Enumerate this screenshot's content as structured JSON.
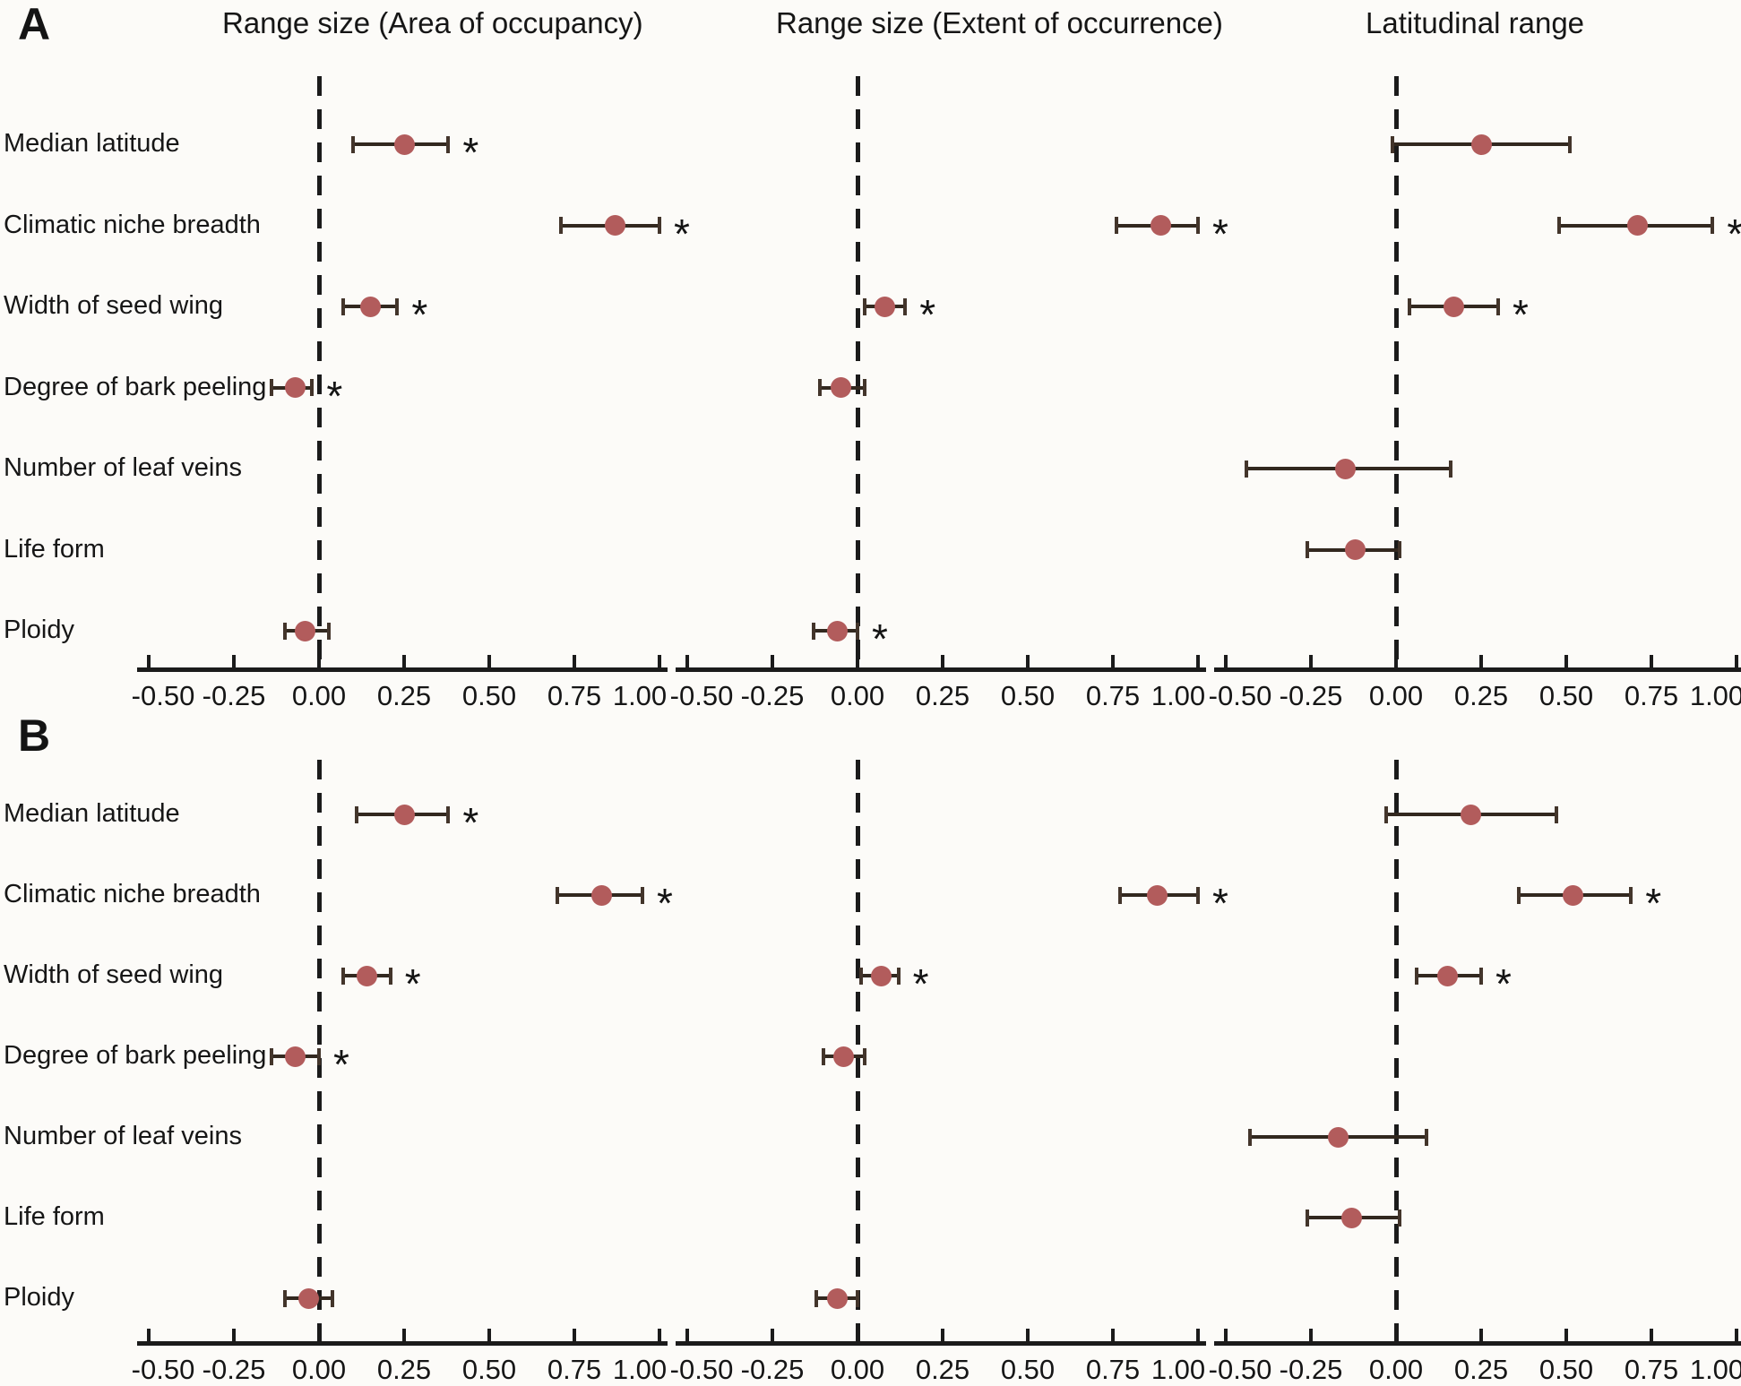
{
  "figure": {
    "panel_a_label": "A",
    "panel_b_label": "B",
    "column_titles": [
      "Range size (Area of occupancy)",
      "Range size (Extent of occurrence)",
      "Latitudinal range"
    ],
    "row_labels": [
      "Median latitude",
      "Climatic niche breadth",
      "Width of seed wing",
      "Degree of bark peeling",
      "Number of leaf veins",
      "Life form",
      "Ploidy"
    ],
    "axis_ticks": [
      "-0.50",
      "-0.25",
      "0.00",
      "0.25",
      "0.50",
      "0.75",
      "1.00"
    ],
    "significance_marker": "*"
  },
  "colors": {
    "dot": "#b25c5c",
    "error_bar": "#32281f",
    "axis": "#1b1b1b",
    "text": "#161616",
    "background": "#fcfbf8"
  },
  "chart_data": [
    {
      "type": "scatter",
      "panel": "A",
      "panel_index": 0,
      "column_index": 0,
      "column": "Range size (Area of occupancy)",
      "xlim": [
        -0.5,
        1.0
      ],
      "x_ticks": [
        -0.5,
        -0.25,
        0.0,
        0.25,
        0.5,
        0.75,
        1.0
      ],
      "zero_line": true,
      "categories": [
        "Median latitude",
        "Climatic niche breadth",
        "Width of seed wing",
        "Degree of bark peeling",
        "Number of leaf veins",
        "Life form",
        "Ploidy"
      ],
      "estimates": [
        0.25,
        0.87,
        0.15,
        -0.07,
        null,
        null,
        -0.04
      ],
      "ci_low": [
        0.1,
        0.71,
        0.07,
        -0.14,
        null,
        null,
        -0.1
      ],
      "ci_high": [
        0.38,
        1.0,
        0.23,
        -0.02,
        null,
        null,
        0.03
      ],
      "significant": [
        true,
        true,
        true,
        true,
        false,
        false,
        false
      ]
    },
    {
      "type": "scatter",
      "panel": "A",
      "panel_index": 0,
      "column_index": 1,
      "column": "Range size (Extent of occurrence)",
      "xlim": [
        -0.5,
        1.0
      ],
      "x_ticks": [
        -0.5,
        -0.25,
        0.0,
        0.25,
        0.5,
        0.75,
        1.0
      ],
      "zero_line": true,
      "categories": [
        "Median latitude",
        "Climatic niche breadth",
        "Width of seed wing",
        "Degree of bark peeling",
        "Number of leaf veins",
        "Life form",
        "Ploidy"
      ],
      "estimates": [
        null,
        0.89,
        0.08,
        -0.05,
        null,
        null,
        -0.06
      ],
      "ci_low": [
        null,
        0.76,
        0.02,
        -0.11,
        null,
        null,
        -0.13
      ],
      "ci_high": [
        null,
        1.0,
        0.14,
        0.02,
        null,
        null,
        0.0
      ],
      "significant": [
        false,
        true,
        true,
        false,
        false,
        false,
        true
      ]
    },
    {
      "type": "scatter",
      "panel": "A",
      "panel_index": 0,
      "column_index": 2,
      "column": "Latitudinal range",
      "xlim": [
        -0.5,
        1.0
      ],
      "x_ticks": [
        -0.5,
        -0.25,
        0.0,
        0.25,
        0.5,
        0.75,
        1.0
      ],
      "zero_line": true,
      "categories": [
        "Median latitude",
        "Climatic niche breadth",
        "Width of seed wing",
        "Degree of bark peeling",
        "Number of leaf veins",
        "Life form",
        "Ploidy"
      ],
      "estimates": [
        0.25,
        0.71,
        0.17,
        null,
        -0.15,
        -0.12,
        null
      ],
      "ci_low": [
        -0.01,
        0.48,
        0.04,
        null,
        -0.44,
        -0.26,
        null
      ],
      "ci_high": [
        0.51,
        0.93,
        0.3,
        null,
        0.16,
        0.01,
        null
      ],
      "significant": [
        false,
        true,
        true,
        false,
        false,
        false,
        false
      ]
    },
    {
      "type": "scatter",
      "panel": "B",
      "panel_index": 1,
      "column_index": 0,
      "column": "Range size (Area of occupancy)",
      "xlim": [
        -0.5,
        1.0
      ],
      "x_ticks": [
        -0.5,
        -0.25,
        0.0,
        0.25,
        0.5,
        0.75,
        1.0
      ],
      "zero_line": true,
      "categories": [
        "Median latitude",
        "Climatic niche breadth",
        "Width of seed wing",
        "Degree of bark peeling",
        "Number of leaf veins",
        "Life form",
        "Ploidy"
      ],
      "estimates": [
        0.25,
        0.83,
        0.14,
        -0.07,
        null,
        null,
        -0.03
      ],
      "ci_low": [
        0.11,
        0.7,
        0.07,
        -0.14,
        null,
        null,
        -0.1
      ],
      "ci_high": [
        0.38,
        0.95,
        0.21,
        0.0,
        null,
        null,
        0.04
      ],
      "significant": [
        true,
        true,
        true,
        true,
        false,
        false,
        false
      ]
    },
    {
      "type": "scatter",
      "panel": "B",
      "panel_index": 1,
      "column_index": 1,
      "column": "Range size (Extent of occurrence)",
      "xlim": [
        -0.5,
        1.0
      ],
      "x_ticks": [
        -0.5,
        -0.25,
        0.0,
        0.25,
        0.5,
        0.75,
        1.0
      ],
      "zero_line": true,
      "categories": [
        "Median latitude",
        "Climatic niche breadth",
        "Width of seed wing",
        "Degree of bark peeling",
        "Number of leaf veins",
        "Life form",
        "Ploidy"
      ],
      "estimates": [
        null,
        0.88,
        0.07,
        -0.04,
        null,
        null,
        -0.06
      ],
      "ci_low": [
        null,
        0.77,
        0.01,
        -0.1,
        null,
        null,
        -0.12
      ],
      "ci_high": [
        null,
        1.0,
        0.12,
        0.02,
        null,
        null,
        0.0
      ],
      "significant": [
        false,
        true,
        true,
        false,
        false,
        false,
        false
      ]
    },
    {
      "type": "scatter",
      "panel": "B",
      "panel_index": 1,
      "column_index": 2,
      "column": "Latitudinal range",
      "xlim": [
        -0.5,
        1.0
      ],
      "x_ticks": [
        -0.5,
        -0.25,
        0.0,
        0.25,
        0.5,
        0.75,
        1.0
      ],
      "zero_line": true,
      "categories": [
        "Median latitude",
        "Climatic niche breadth",
        "Width of seed wing",
        "Degree of bark peeling",
        "Number of leaf veins",
        "Life form",
        "Ploidy"
      ],
      "estimates": [
        0.22,
        0.52,
        0.15,
        null,
        -0.17,
        -0.13,
        null
      ],
      "ci_low": [
        -0.03,
        0.36,
        0.06,
        null,
        -0.43,
        -0.26,
        null
      ],
      "ci_high": [
        0.47,
        0.69,
        0.25,
        null,
        0.09,
        0.01,
        null
      ],
      "significant": [
        false,
        true,
        true,
        false,
        false,
        false,
        false
      ]
    }
  ]
}
